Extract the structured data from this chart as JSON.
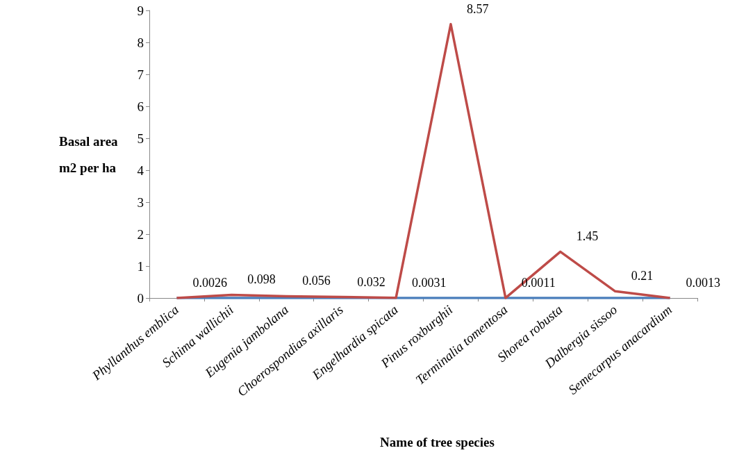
{
  "chart_data": {
    "type": "line",
    "xlabel": "Name of tree species",
    "ylabel": "Basal area\nm2 per ha",
    "categories": [
      "Phyllanthus emblica",
      "Schima wallichii",
      "Eugenia jambolana",
      "Choerospondias axillaris",
      "Engelhardia spicata",
      "Pinus roxburghii",
      "Terminalia tomentosa",
      "Shorea robusta",
      "Dalbergia sissoo",
      "Semecarpus anacardium"
    ],
    "series": [
      {
        "color": "#4a7ebb",
        "values": [
          0,
          0,
          0,
          0,
          0,
          0,
          0,
          0,
          0,
          0
        ]
      },
      {
        "color": "#be4b48",
        "values": [
          0.0026,
          0.098,
          0.056,
          0.032,
          0.0031,
          8.57,
          0.0011,
          1.45,
          0.21,
          0.0013
        ],
        "data_labels": true
      }
    ],
    "ylim": [
      0,
      9
    ],
    "yticks": [
      0,
      1,
      2,
      3,
      4,
      5,
      6,
      7,
      8,
      9
    ],
    "grid": false,
    "marker": "none",
    "line_style": "solid"
  }
}
